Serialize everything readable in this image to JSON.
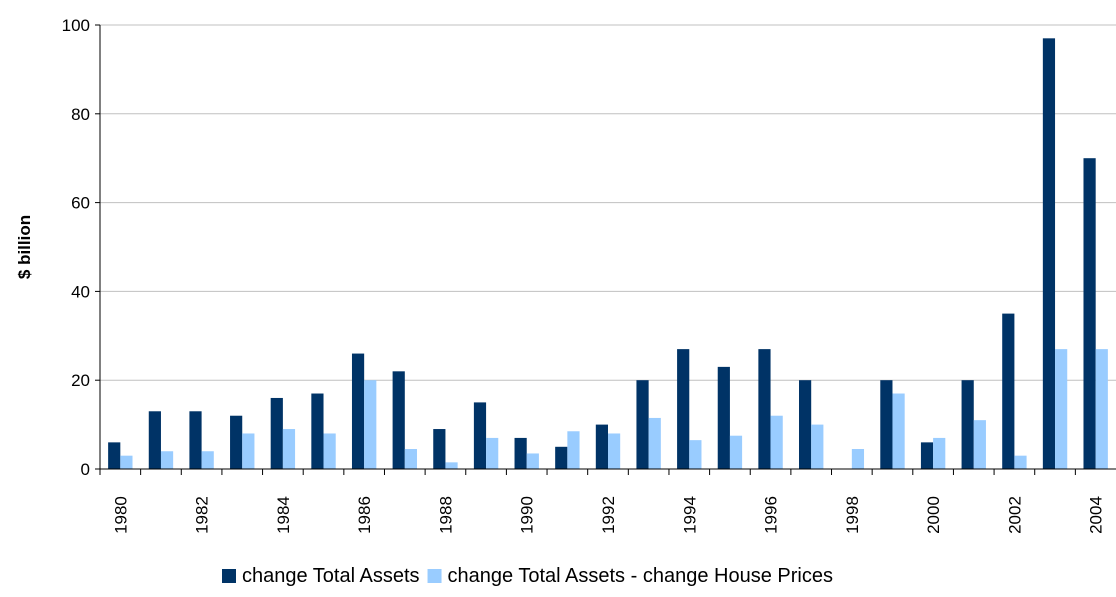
{
  "chart_data": {
    "type": "bar",
    "ylabel": "$ billion",
    "categories": [
      "1980",
      null,
      "1982",
      null,
      "1984",
      null,
      "1986",
      null,
      "1988",
      null,
      "1990",
      null,
      "1992",
      null,
      "1994",
      null,
      "1996",
      null,
      "1998",
      null,
      "2000",
      null,
      "2002",
      null,
      "2004"
    ],
    "series": [
      {
        "name": "change Total Assets",
        "color": "#003366",
        "values": [
          6,
          13,
          13,
          12,
          16,
          17,
          26,
          22,
          9,
          15,
          7,
          5,
          10,
          20,
          27,
          23,
          27,
          20,
          0,
          20,
          6,
          20,
          35,
          97,
          70
        ]
      },
      {
        "name": "change Total Assets - change House Prices",
        "color": "#99ccff",
        "values": [
          3,
          4,
          4,
          8,
          9,
          8,
          20,
          4.5,
          1.5,
          7,
          3.5,
          8.5,
          8,
          11.5,
          6.5,
          7.5,
          12,
          10,
          4.5,
          17,
          7,
          11,
          3,
          27,
          27
        ]
      }
    ],
    "ylim": [
      0,
      100
    ],
    "yticks": [
      0,
      20,
      40,
      60,
      80,
      100
    ],
    "grid": true,
    "legend": "bottom"
  }
}
